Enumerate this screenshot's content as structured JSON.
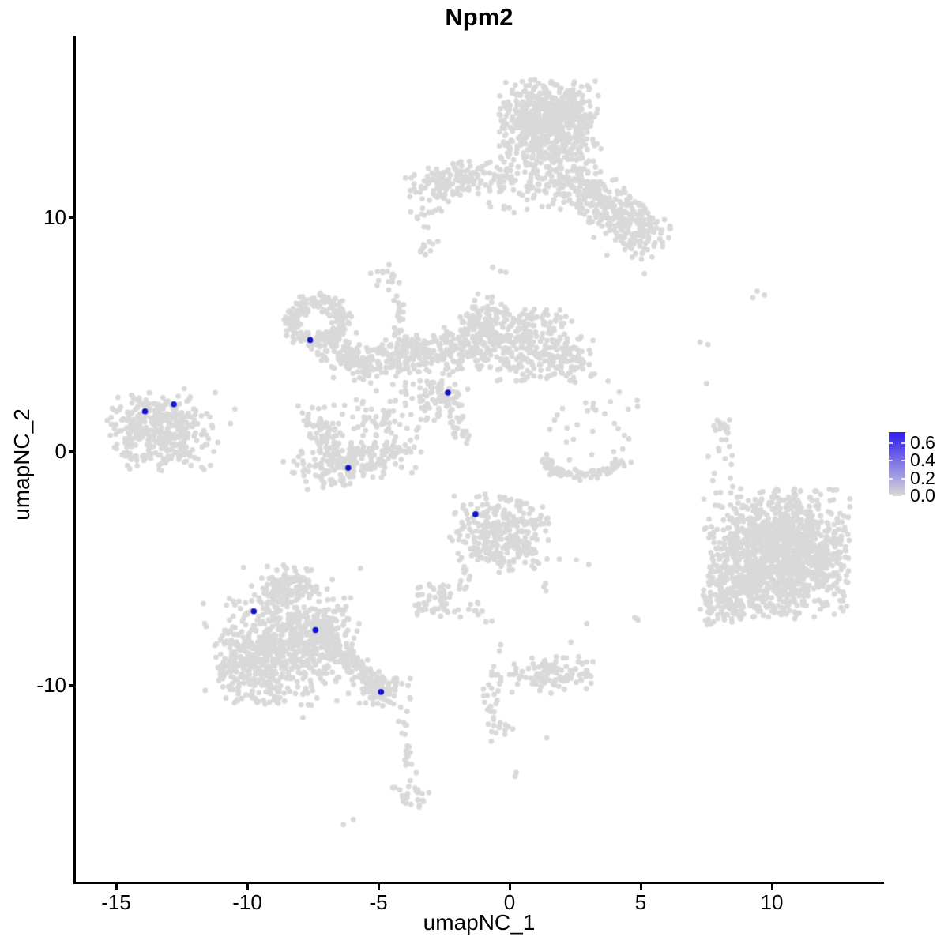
{
  "title": "Npm2",
  "chart_data": {
    "type": "scatter",
    "title": "Npm2",
    "subtitle": "",
    "xlabel": "umapNC_1",
    "ylabel": "umapNC_2",
    "xlim": [
      -16.6,
      14.2
    ],
    "ylim": [
      -18.5,
      17.8
    ],
    "grid": false,
    "legend_position": "right",
    "x_ticks": [
      {
        "label": "-15",
        "value": -15
      },
      {
        "label": "-10",
        "value": -10
      },
      {
        "label": "-5",
        "value": -5
      },
      {
        "label": "0",
        "value": 0
      },
      {
        "label": "5",
        "value": 5
      },
      {
        "label": "10",
        "value": 10
      }
    ],
    "y_ticks": [
      {
        "label": "10",
        "value": 10
      },
      {
        "label": "0",
        "value": 0
      },
      {
        "label": "-10",
        "value": -10
      }
    ],
    "colorbar": {
      "ticks": [
        {
          "label": "0.6",
          "value": 0.6
        },
        {
          "label": "0.4",
          "value": 0.4
        },
        {
          "label": "0.2",
          "value": 0.2
        },
        {
          "label": "0.0",
          "value": 0.0
        }
      ],
      "low_color": "#d9d9d9",
      "high_color": "#2d1bf2",
      "value_range": [
        0,
        0.72
      ]
    },
    "style": {
      "point_color": "#d9d9d9",
      "highlight_color": "#1414cf",
      "axis_color": "#000000",
      "background": "#ffffff",
      "point_radius_px": 3.4,
      "highlight_radius_px": 3.8
    },
    "clusters": [
      {
        "name": "top-main-blob",
        "n": 620,
        "cx": 1.5,
        "cy": 14.2,
        "sx": 0.95,
        "sy": 0.85,
        "t": 2
      },
      {
        "name": "top-lower",
        "n": 200,
        "cx": 1.2,
        "cy": 11.7,
        "sx": 1.2,
        "sy": 0.75,
        "t": 2
      },
      {
        "name": "top-left-arm",
        "n": 140,
        "cx": -2.2,
        "cy": 11.6,
        "sx": 0.95,
        "sy": 0.4,
        "rot": 10
      },
      {
        "name": "top-left-arm-tip",
        "n": 18,
        "cx": -3.05,
        "cy": 10.3,
        "sx": 0.45,
        "sy": 0.4
      },
      {
        "name": "top-right-arm",
        "n": 260,
        "cx": 3.9,
        "cy": 10.4,
        "sx": 1.35,
        "sy": 0.55,
        "rot": -40
      },
      {
        "name": "top-right-arm-fringe",
        "n": 60,
        "cx": 4.6,
        "cy": 9.6,
        "sx": 1.0,
        "sy": 0.8,
        "rot": -40
      },
      {
        "name": "dash-left",
        "n": 10,
        "cx": -3.1,
        "cy": 8.75,
        "sx": 0.3,
        "sy": 0.12,
        "rot": 35
      },
      {
        "name": "dots-below-arm",
        "n": 3,
        "cx": -0.5,
        "cy": 7.8,
        "sx": 0.2,
        "sy": 0.2
      },
      {
        "name": "knob",
        "n": 16,
        "cx": -4.75,
        "cy": 7.35,
        "sx": 0.3,
        "sy": 0.35
      },
      {
        "name": "strand-to-ring",
        "n": 28,
        "cx": -4.2,
        "cy": 5.45,
        "sx": 0.14,
        "sy": 0.8,
        "t": 1.6
      },
      {
        "name": "ring",
        "shape": "ring",
        "n": 230,
        "cx": -7.3,
        "cy": 5.5,
        "sx": 0.95,
        "sy": 0.9,
        "rsd": 0.22
      },
      {
        "name": "ring-tail",
        "n": 70,
        "cx": -6.1,
        "cy": 4.1,
        "sx": 0.75,
        "sy": 0.3,
        "rot": -38
      },
      {
        "name": "band-left",
        "n": 150,
        "cx": -4.9,
        "cy": 3.95,
        "sx": 1.3,
        "sy": 0.42,
        "rot": 8
      },
      {
        "name": "band-mid",
        "n": 120,
        "cx": -2.7,
        "cy": 4.2,
        "sx": 1.0,
        "sy": 0.5
      },
      {
        "name": "mid-rise",
        "n": 160,
        "cx": -1.3,
        "cy": 5.1,
        "sx": 0.9,
        "sy": 0.6,
        "rot": 55
      },
      {
        "name": "mid-right-blob",
        "n": 280,
        "cx": 0.6,
        "cy": 4.6,
        "sx": 1.05,
        "sy": 0.8,
        "t": 2
      },
      {
        "name": "right-extension",
        "n": 70,
        "cx": 2.2,
        "cy": 3.95,
        "sx": 0.55,
        "sy": 0.55
      },
      {
        "name": "cross-down-sparse",
        "n": 50,
        "cx": -3.2,
        "cy": 2.2,
        "sx": 1.15,
        "sy": 0.5,
        "rot": -40
      },
      {
        "name": "center-knot",
        "n": 40,
        "cx": -2.4,
        "cy": 2.4,
        "sx": 0.5,
        "sy": 0.35
      },
      {
        "name": "knot-tail",
        "n": 22,
        "cx": -1.95,
        "cy": 0.9,
        "sx": 0.55,
        "sy": 0.25,
        "rot": -65
      },
      {
        "name": "wing-bottom",
        "n": 200,
        "cx": -5.9,
        "cy": -0.4,
        "sx": 1.35,
        "sy": 0.5,
        "rot": 10,
        "t": 2
      },
      {
        "name": "wing-left",
        "n": 80,
        "cx": -7.0,
        "cy": 0.7,
        "sx": 0.8,
        "sy": 0.4,
        "rot": -70
      },
      {
        "name": "wing-top-sparse",
        "n": 50,
        "cx": -5.2,
        "cy": 1.4,
        "sx": 0.9,
        "sy": 0.55
      },
      {
        "name": "left-cluster-main",
        "n": 300,
        "cx": -13.3,
        "cy": 0.75,
        "sx": 0.95,
        "sy": 0.8,
        "t": 2
      },
      {
        "name": "left-cluster-halo",
        "n": 60,
        "cx": -13.3,
        "cy": 0.75,
        "sx": 1.35,
        "sy": 1.1,
        "t": 1.8
      },
      {
        "name": "left-cluster-outliers",
        "n": 7,
        "cx": -11.2,
        "cy": 1.0,
        "sx": 0.55,
        "sy": 0.8
      },
      {
        "name": "midbottom-main",
        "n": 300,
        "cx": -0.4,
        "cy": -3.5,
        "sx": 0.95,
        "sy": 0.85,
        "t": 2
      },
      {
        "name": "midbottom-left-strand",
        "n": 14,
        "cx": -1.75,
        "cy": -5.4,
        "sx": 0.75,
        "sy": 0.18,
        "rot": -75
      },
      {
        "name": "midbottom-right-strand",
        "n": 18,
        "cx": 0.75,
        "cy": -4.6,
        "sx": 0.8,
        "sy": 0.2,
        "rot": -70
      },
      {
        "name": "small-left-blob",
        "n": 55,
        "cx": -2.65,
        "cy": -6.55,
        "sx": 0.55,
        "sy": 0.45
      },
      {
        "name": "small-left-bits",
        "n": 8,
        "cx": -1.05,
        "cy": -6.9,
        "sx": 0.4,
        "sy": 0.15,
        "rot": -60
      },
      {
        "name": "sparse-group-right",
        "n": 30,
        "cx": 3.1,
        "cy": 1.25,
        "sx": 1.0,
        "sy": 1.0
      },
      {
        "name": "crescent",
        "shape": "arc",
        "n": 95,
        "cx": 2.75,
        "cy": -0.45,
        "sx": 1.35,
        "sy": 0.55,
        "a0": 160,
        "a1": 380,
        "jit": 0.1
      },
      {
        "name": "vstrand-right",
        "n": 24,
        "cx": 8.05,
        "cy": 0.35,
        "sx": 0.3,
        "sy": 0.85
      },
      {
        "name": "pair-dots-a",
        "n": 2,
        "cx": 7.5,
        "cy": 4.7,
        "sx": 0.2,
        "sy": 0.2
      },
      {
        "name": "pair-dots-b",
        "n": 3,
        "cx": 9.3,
        "cy": 6.75,
        "sx": 0.4,
        "sy": 0.15
      },
      {
        "name": "single-dot-a",
        "n": 1,
        "cx": 7.35,
        "cy": 2.9,
        "sx": 0.1,
        "sy": 0.1
      },
      {
        "name": "right-cluster-main",
        "n": 1250,
        "cx": 10.3,
        "cy": -4.4,
        "sx": 1.35,
        "sy": 1.4,
        "t": 2
      },
      {
        "name": "right-cluster-lobe",
        "n": 140,
        "cx": 8.4,
        "cy": -6.2,
        "sx": 0.6,
        "sy": 0.65,
        "t": 2
      },
      {
        "name": "right-cluster-fringe",
        "n": 90,
        "cx": 10.2,
        "cy": -4.3,
        "sx": 1.7,
        "sy": 1.7,
        "t": 1.7
      },
      {
        "name": "right-topleft-dots",
        "n": 3,
        "cx": 8.3,
        "cy": -1.4,
        "sx": 0.3,
        "sy": 0.3
      },
      {
        "name": "bottomleft-main",
        "n": 500,
        "cx": -8.6,
        "cy": -8.2,
        "sx": 1.2,
        "sy": 1.35,
        "t": 2
      },
      {
        "name": "bottomleft-apex",
        "n": 100,
        "cx": -8.4,
        "cy": -5.7,
        "sx": 0.6,
        "sy": 0.5
      },
      {
        "name": "bottomleft-left-lobe",
        "n": 150,
        "cx": -10.0,
        "cy": -9.3,
        "sx": 0.7,
        "sy": 0.75,
        "t": 2
      },
      {
        "name": "bottomleft-right-lobe",
        "n": 140,
        "cx": -7.2,
        "cy": -7.9,
        "sx": 0.7,
        "sy": 0.7
      },
      {
        "name": "bottomleft-halo",
        "n": 90,
        "cx": -8.7,
        "cy": -8.2,
        "sx": 1.7,
        "sy": 1.8,
        "t": 1.8
      },
      {
        "name": "bottomleft-arm",
        "n": 130,
        "cx": -5.95,
        "cy": -9.2,
        "sx": 1.05,
        "sy": 0.3,
        "rot": -43
      },
      {
        "name": "arm-end-blob",
        "n": 70,
        "cx": -4.8,
        "cy": -10.2,
        "sx": 0.55,
        "sy": 0.38
      },
      {
        "name": "tail-strand",
        "n": 20,
        "cx": -3.9,
        "cy": -12.7,
        "sx": 0.14,
        "sy": 1.1,
        "rot": 8,
        "t": 1.6
      },
      {
        "name": "tail-blob",
        "n": 26,
        "cx": -3.7,
        "cy": -14.7,
        "sx": 0.4,
        "sy": 0.3
      },
      {
        "name": "tail-dots",
        "n": 2,
        "cx": -6.1,
        "cy": -15.85,
        "sx": 0.25,
        "sy": 0.1,
        "rot": 35
      },
      {
        "name": "vstrand-mid",
        "n": 30,
        "cx": -0.65,
        "cy": -10.3,
        "sx": 0.22,
        "sy": 1.3,
        "t": 1.7
      },
      {
        "name": "vstrand-end",
        "n": 10,
        "cx": -0.25,
        "cy": -11.7,
        "sx": 0.25,
        "sy": 0.3
      },
      {
        "name": "low-single-dots",
        "n": 2,
        "cx": 0.35,
        "cy": -13.9,
        "sx": 0.15,
        "sy": 0.2
      },
      {
        "name": "low-single-dot-b",
        "n": 1,
        "cx": 1.45,
        "cy": -12.2,
        "sx": 0.1,
        "sy": 0.1
      },
      {
        "name": "small-cluster-bottom",
        "n": 85,
        "cx": 1.55,
        "cy": -9.6,
        "sx": 0.8,
        "sy": 0.45,
        "t": 2
      },
      {
        "name": "small-cluster-bump",
        "n": 15,
        "cx": 2.75,
        "cy": -9.35,
        "sx": 0.3,
        "sy": 0.25
      },
      {
        "name": "dot-b1",
        "n": 1,
        "cx": 2.3,
        "cy": -8.35,
        "sx": 0.1,
        "sy": 0.1
      },
      {
        "name": "dot-b2",
        "n": 1,
        "cx": 2.95,
        "cy": -7.2,
        "sx": 0.1,
        "sy": 0.1
      },
      {
        "name": "dots-right-low",
        "n": 3,
        "cx": 4.85,
        "cy": -7.2,
        "sx": 0.12,
        "sy": 0.45
      },
      {
        "name": "dots-mid-low",
        "n": 3,
        "cx": 2.6,
        "cy": -4.85,
        "sx": 0.5,
        "sy": 0.15
      }
    ],
    "highlighted_cells": [
      [
        -7.6,
        4.75
      ],
      [
        -13.9,
        1.7
      ],
      [
        -12.8,
        2.0
      ],
      [
        -2.35,
        2.5
      ],
      [
        -6.15,
        -0.72
      ],
      [
        -1.3,
        -2.7
      ],
      [
        -9.75,
        -6.85
      ],
      [
        -7.4,
        -7.65
      ],
      [
        -4.9,
        -10.3
      ]
    ]
  }
}
